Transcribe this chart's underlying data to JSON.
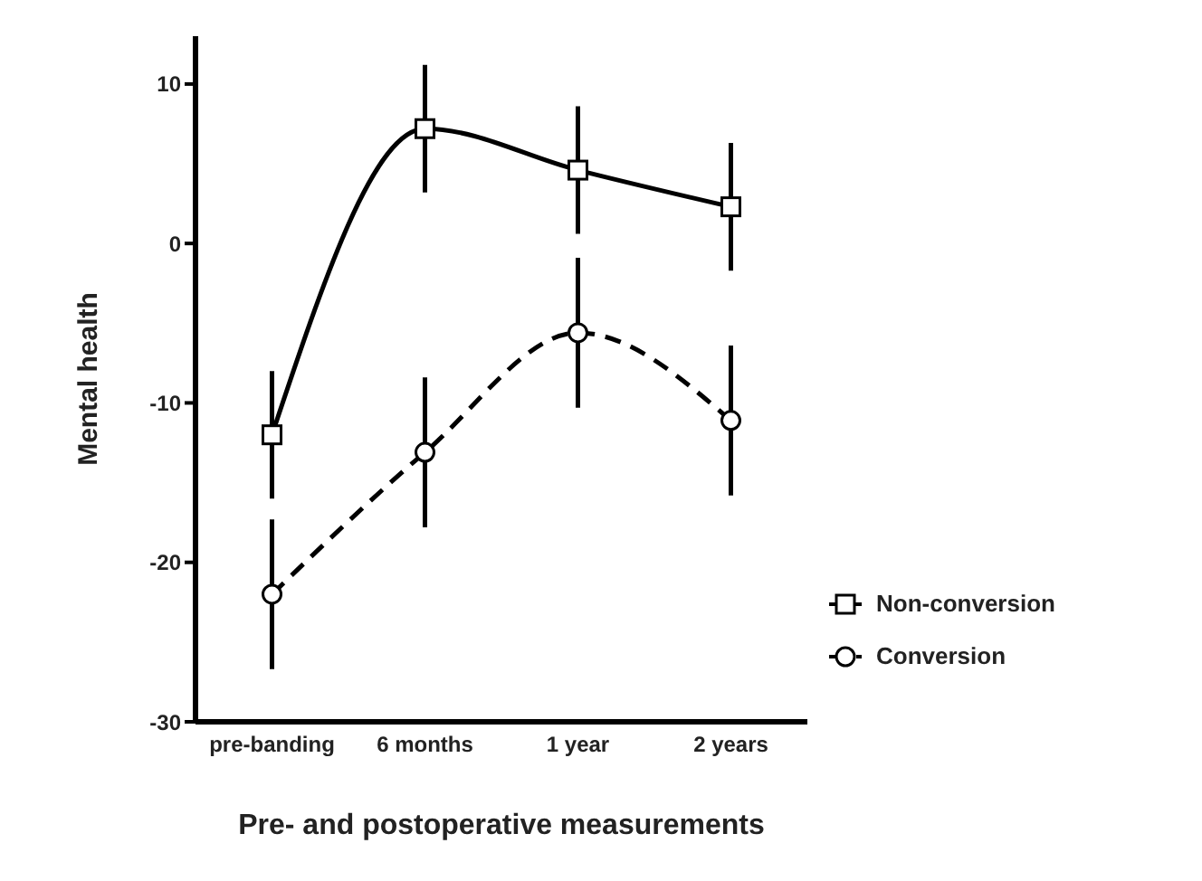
{
  "chart_data": {
    "type": "line",
    "xlabel": "Pre- and postoperative measurements",
    "ylabel": "Mental health",
    "categories": [
      "pre-banding",
      "6 months",
      "1 year",
      "2 years"
    ],
    "series": [
      {
        "name": "Non-conversion",
        "color": "#000000",
        "values": [
          -12,
          7.2,
          4.6,
          2.3
        ],
        "errors": [
          4,
          4,
          4,
          4
        ],
        "marker": "square",
        "line_style": "solid"
      },
      {
        "name": "Conversion",
        "color": "#000000",
        "values": [
          -22,
          -13.1,
          -5.6,
          -11.1
        ],
        "errors": [
          4.7,
          4.7,
          4.7,
          4.7
        ],
        "marker": "circle",
        "line_style": "dashed"
      }
    ],
    "ylim": [
      -30,
      13
    ],
    "yticks": [
      -30,
      -20,
      -10,
      0,
      10
    ],
    "grid": false,
    "legend": "bottom right"
  }
}
